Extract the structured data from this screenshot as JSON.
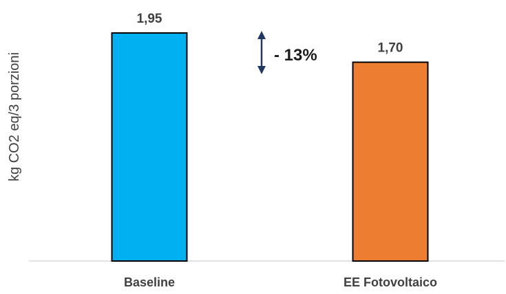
{
  "chart_data": {
    "type": "bar",
    "title": "",
    "xlabel": "",
    "ylabel": "kg CO2 eq/3 porzioni",
    "ylim": [
      0,
      2.2
    ],
    "grid": false,
    "categories": [
      "Baseline",
      "EE Fotovoltaico"
    ],
    "values": [
      1.95,
      1.7
    ],
    "value_labels": [
      "1,95",
      "1,70"
    ],
    "bar_colors": [
      "#00B0F0",
      "#ED7D31"
    ],
    "bar_edge_color": "#000000",
    "annotation": {
      "text": "- 13%",
      "arrow_color": "#1F3864"
    }
  }
}
